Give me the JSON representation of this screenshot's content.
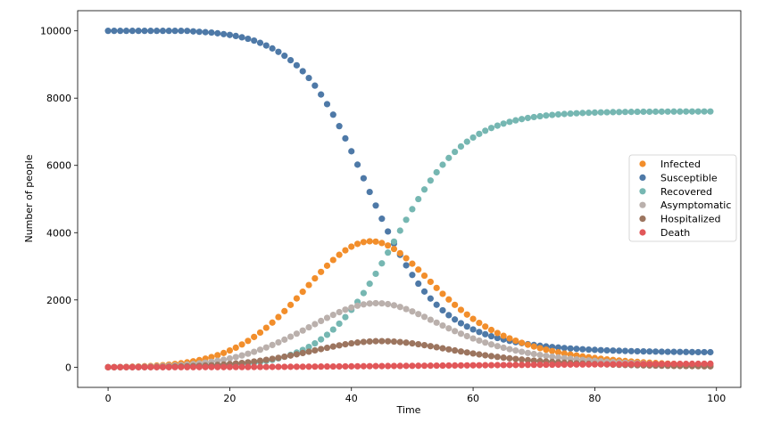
{
  "chart_data": {
    "type": "scatter",
    "xlabel": "Time",
    "ylabel": "Number of people",
    "xlim": [
      -5,
      104
    ],
    "ylim": [
      -600,
      10600
    ],
    "xticks": [
      0,
      20,
      40,
      60,
      80,
      100
    ],
    "yticks": [
      0,
      2000,
      4000,
      6000,
      8000,
      10000
    ],
    "grid": false,
    "legend_position": "right",
    "x": [
      0,
      1,
      2,
      3,
      4,
      5,
      6,
      7,
      8,
      9,
      10,
      11,
      12,
      13,
      14,
      15,
      16,
      17,
      18,
      19,
      20,
      21,
      22,
      23,
      24,
      25,
      26,
      27,
      28,
      29,
      30,
      31,
      32,
      33,
      34,
      35,
      36,
      37,
      38,
      39,
      40,
      41,
      42,
      43,
      44,
      45,
      46,
      47,
      48,
      49,
      50,
      51,
      52,
      53,
      54,
      55,
      56,
      57,
      58,
      59,
      60,
      61,
      62,
      63,
      64,
      65,
      66,
      67,
      68,
      69,
      70,
      71,
      72,
      73,
      74,
      75,
      76,
      77,
      78,
      79,
      80,
      81,
      82,
      83,
      84,
      85,
      86,
      87,
      88,
      89,
      90,
      91,
      92,
      93,
      94,
      95,
      96,
      97,
      98,
      99
    ],
    "series": [
      {
        "name": "Infected",
        "color": "#f28e2b",
        "values": [
          0,
          3,
          6,
          10,
          15,
          21,
          28,
          37,
          48,
          61,
          77,
          96,
          118,
          144,
          175,
          211,
          253,
          302,
          358,
          423,
          497,
          581,
          676,
          782,
          900,
          1030,
          1172,
          1326,
          1491,
          1667,
          1852,
          2045,
          2243,
          2443,
          2641,
          2834,
          3018,
          3188,
          3342,
          3475,
          3584,
          3667,
          3721,
          3744,
          3734,
          3692,
          3618,
          3516,
          3389,
          3241,
          3077,
          2902,
          2721,
          2538,
          2357,
          2182,
          2014,
          1854,
          1704,
          1565,
          1436,
          1317,
          1208,
          1108,
          1017,
          934,
          858,
          789,
          726,
          668,
          615,
          566,
          521,
          480,
          442,
          408,
          376,
          347,
          320,
          296,
          273,
          252,
          233,
          215,
          199,
          184,
          170,
          157,
          145,
          134,
          124,
          115,
          107,
          99,
          92,
          85,
          79,
          73,
          68,
          63
        ]
      },
      {
        "name": "Susceptible",
        "color": "#4e79a7",
        "values": [
          10000,
          10000,
          10000,
          10000,
          10000,
          10000,
          10000,
          10000,
          10000,
          10000,
          10000,
          10000,
          10000,
          9999,
          9985,
          9973,
          9961,
          9950,
          9928,
          9904,
          9879,
          9848,
          9808,
          9765,
          9711,
          9644,
          9565,
          9478,
          9376,
          9260,
          9128,
          8976,
          8800,
          8600,
          8372,
          8108,
          7822,
          7508,
          7167,
          6803,
          6420,
          6023,
          5617,
          5210,
          4807,
          4414,
          4035,
          3677,
          3340,
          3028,
          2743,
          2484,
          2250,
          2041,
          1856,
          1692,
          1547,
          1419,
          1307,
          1209,
          1123,
          1047,
          980,
          921,
          869,
          823,
          782,
          746,
          714,
          686,
          661,
          638,
          618,
          600,
          584,
          570,
          557,
          545,
          534,
          524,
          515,
          507,
          500,
          494,
          488,
          483,
          478,
          474,
          470,
          467,
          464,
          461,
          458,
          456,
          454,
          452,
          450,
          448,
          447,
          446
        ]
      },
      {
        "name": "Recovered",
        "color": "#76b7b2",
        "values": [
          0,
          0,
          0,
          0,
          0,
          1,
          1,
          2,
          3,
          4,
          5,
          7,
          9,
          12,
          15,
          20,
          25,
          31,
          39,
          48,
          59,
          72,
          88,
          107,
          129,
          155,
          185,
          220,
          262,
          311,
          368,
          435,
          513,
          603,
          707,
          827,
          964,
          1119,
          1294,
          1489,
          1706,
          1944,
          2203,
          2481,
          2777,
          3087,
          3407,
          3733,
          4060,
          4383,
          4698,
          4999,
          5284,
          5550,
          5795,
          6019,
          6221,
          6402,
          6563,
          6705,
          6829,
          6937,
          7031,
          7112,
          7182,
          7243,
          7295,
          7339,
          7377,
          7410,
          7438,
          7462,
          7483,
          7501,
          7516,
          7529,
          7540,
          7550,
          7558,
          7565,
          7571,
          7576,
          7580,
          7584,
          7587,
          7590,
          7592,
          7594,
          7596,
          7597,
          7598,
          7599,
          7600,
          7601,
          7601,
          7602,
          7602,
          7602,
          7603,
          7603
        ]
      },
      {
        "name": "Asymptomatic",
        "color": "#bab0ac",
        "values": [
          0,
          1,
          3,
          5,
          8,
          11,
          15,
          20,
          26,
          33,
          42,
          52,
          64,
          78,
          95,
          114,
          136,
          161,
          190,
          223,
          260,
          302,
          349,
          401,
          458,
          520,
          587,
          660,
          738,
          820,
          907,
          997,
          1090,
          1185,
          1280,
          1375,
          1467,
          1555,
          1637,
          1711,
          1775,
          1828,
          1868,
          1893,
          1903,
          1897,
          1876,
          1840,
          1790,
          1729,
          1658,
          1580,
          1497,
          1411,
          1324,
          1238,
          1154,
          1073,
          996,
          923,
          855,
          791,
          732,
          677,
          626,
          579,
          535,
          495,
          458,
          424,
          393,
          364,
          337,
          313,
          290,
          269,
          250,
          232,
          216,
          201,
          187,
          174,
          162,
          151,
          141,
          132,
          123,
          115,
          108,
          101,
          95,
          89,
          84,
          79,
          74,
          70,
          66,
          62,
          59,
          56
        ]
      },
      {
        "name": "Hospitalized",
        "color": "#9c755f",
        "values": [
          0,
          0,
          1,
          2,
          3,
          4,
          5,
          7,
          9,
          11,
          14,
          18,
          22,
          27,
          33,
          40,
          48,
          57,
          68,
          80,
          94,
          110,
          127,
          147,
          169,
          193,
          219,
          248,
          279,
          312,
          347,
          384,
          422,
          461,
          500,
          539,
          577,
          614,
          649,
          681,
          709,
          733,
          752,
          765,
          773,
          775,
          771,
          762,
          748,
          730,
          708,
          683,
          655,
          625,
          594,
          562,
          530,
          498,
          467,
          437,
          408,
          380,
          354,
          329,
          306,
          284,
          264,
          245,
          227,
          211,
          196,
          182,
          169,
          157,
          146,
          135,
          126,
          117,
          109,
          101,
          94,
          88,
          82,
          76,
          71,
          66,
          62,
          58,
          54,
          50,
          47,
          44,
          41,
          38,
          36,
          34,
          32,
          30,
          28,
          26
        ]
      },
      {
        "name": "Death",
        "color": "#e15759",
        "values": [
          0,
          0,
          0,
          0,
          0,
          0,
          0,
          0,
          0,
          0,
          0,
          1,
          1,
          1,
          1,
          2,
          2,
          2,
          3,
          3,
          4,
          4,
          5,
          5,
          6,
          7,
          8,
          9,
          10,
          11,
          12,
          13,
          14,
          16,
          17,
          18,
          20,
          21,
          23,
          24,
          26,
          27,
          29,
          30,
          32,
          33,
          35,
          36,
          38,
          39,
          41,
          42,
          44,
          45,
          47,
          48,
          50,
          51,
          53,
          54,
          56,
          57,
          59,
          60,
          62,
          63,
          65,
          66,
          67,
          69,
          70,
          72,
          73,
          74,
          76,
          77,
          78,
          80,
          81,
          82,
          84,
          85,
          86,
          87,
          88,
          90,
          91,
          92,
          93,
          94,
          95,
          96,
          97,
          98,
          99,
          100,
          101,
          102,
          103,
          104
        ]
      }
    ]
  }
}
